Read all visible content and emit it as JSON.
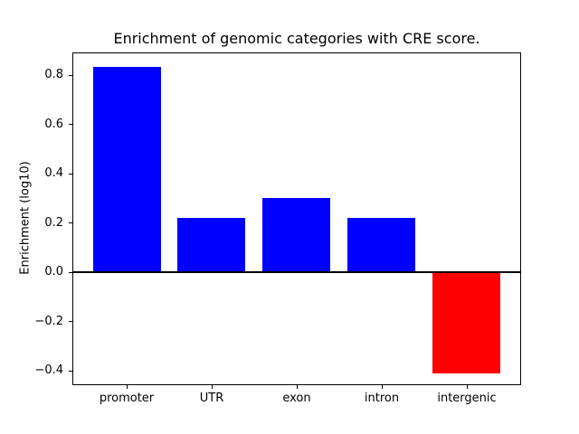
{
  "chart_data": {
    "type": "bar",
    "title": "Enrichment of genomic categories with CRE score.",
    "xlabel": "",
    "ylabel": "Enrichment (log10)",
    "categories": [
      "promoter",
      "UTR",
      "exon",
      "intron",
      "intergenic"
    ],
    "values": [
      0.83,
      0.22,
      0.3,
      0.22,
      -0.41
    ],
    "bar_colors": [
      "#0000ff",
      "#0000ff",
      "#0000ff",
      "#0000ff",
      "#ff0000"
    ],
    "positive_color": "#0000ff",
    "negative_color": "#ff0000",
    "bar_width": 0.8,
    "xlim": [
      -0.64,
      4.64
    ],
    "ylim": [
      -0.46,
      0.89
    ],
    "yticks": [
      {
        "value": -0.4,
        "label": "−0.4"
      },
      {
        "value": -0.2,
        "label": "−0.2"
      },
      {
        "value": 0.0,
        "label": "0.0"
      },
      {
        "value": 0.2,
        "label": "0.2"
      },
      {
        "value": 0.4,
        "label": "0.4"
      },
      {
        "value": 0.6,
        "label": "0.6"
      },
      {
        "value": 0.8,
        "label": "0.8"
      }
    ],
    "zero_line": {
      "y": 0,
      "color": "#000000",
      "thickness": 2
    },
    "grid": false,
    "legend": "none",
    "background_color": "#ffffff",
    "frame_color": "#000000"
  }
}
